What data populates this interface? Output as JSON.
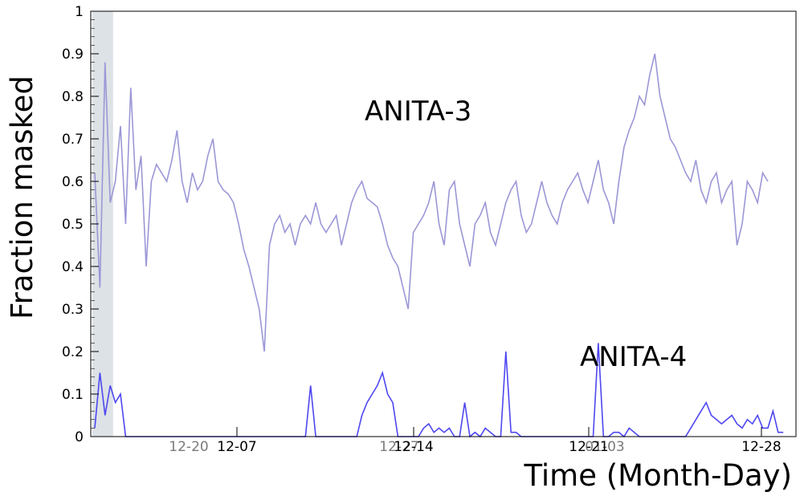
{
  "chart_data": {
    "type": "line",
    "title": "",
    "xlabel": "Time (Month-Day)",
    "ylabel": "Fraction masked",
    "ylim": [
      0,
      1
    ],
    "yticks": [
      "0",
      "0.1",
      "0.2",
      "0.3",
      "0.4",
      "0.5",
      "0.6",
      "0.7",
      "0.8",
      "0.9",
      "1"
    ],
    "xticks_anita3": [
      "12-20",
      "12-27",
      "01-03"
    ],
    "xticks_anita4": [
      "12-07",
      "12-14",
      "12-21",
      "12-28"
    ],
    "annotations": [
      "ANITA-3",
      "ANITA-4"
    ],
    "colors": {
      "anita3": "#9b97d6",
      "anita4": "#4e47f0",
      "shade": "#dde2e6"
    },
    "series": [
      {
        "name": "ANITA-3",
        "values": [
          0.62,
          0.35,
          0.88,
          0.55,
          0.6,
          0.73,
          0.5,
          0.82,
          0.58,
          0.66,
          0.4,
          0.6,
          0.64,
          0.62,
          0.6,
          0.65,
          0.72,
          0.6,
          0.55,
          0.62,
          0.58,
          0.6,
          0.66,
          0.7,
          0.6,
          0.58,
          0.57,
          0.55,
          0.5,
          0.44,
          0.4,
          0.35,
          0.3,
          0.2,
          0.45,
          0.5,
          0.52,
          0.48,
          0.5,
          0.45,
          0.5,
          0.52,
          0.5,
          0.55,
          0.5,
          0.48,
          0.5,
          0.52,
          0.45,
          0.5,
          0.55,
          0.58,
          0.6,
          0.56,
          0.55,
          0.54,
          0.5,
          0.45,
          0.42,
          0.4,
          0.35,
          0.3,
          0.48,
          0.5,
          0.52,
          0.55,
          0.6,
          0.5,
          0.45,
          0.58,
          0.6,
          0.5,
          0.45,
          0.4,
          0.5,
          0.52,
          0.55,
          0.48,
          0.45,
          0.5,
          0.55,
          0.58,
          0.6,
          0.52,
          0.48,
          0.5,
          0.55,
          0.6,
          0.55,
          0.52,
          0.5,
          0.55,
          0.58,
          0.6,
          0.62,
          0.58,
          0.55,
          0.6,
          0.65,
          0.58,
          0.55,
          0.5,
          0.6,
          0.68,
          0.72,
          0.75,
          0.8,
          0.78,
          0.85,
          0.9,
          0.8,
          0.75,
          0.7,
          0.68,
          0.65,
          0.62,
          0.6,
          0.65,
          0.58,
          0.55,
          0.6,
          0.62,
          0.55,
          0.58,
          0.6,
          0.45,
          0.5,
          0.6,
          0.58,
          0.55,
          0.62,
          0.6
        ]
      },
      {
        "name": "ANITA-4",
        "values": [
          0.02,
          0.15,
          0.05,
          0.12,
          0.08,
          0.1,
          0,
          0,
          0,
          0,
          0,
          0,
          0,
          0,
          0,
          0,
          0,
          0,
          0,
          0,
          0,
          0,
          0,
          0,
          0,
          0,
          0,
          0,
          0,
          0,
          0,
          0,
          0,
          0,
          0,
          0,
          0,
          0,
          0,
          0,
          0,
          0,
          0.12,
          0,
          0,
          0,
          0,
          0,
          0,
          0,
          0,
          0,
          0.05,
          0.08,
          0.1,
          0.12,
          0.15,
          0.1,
          0.08,
          0,
          0,
          0,
          0,
          0,
          0.02,
          0.03,
          0.01,
          0.02,
          0.01,
          0.02,
          0,
          0,
          0.08,
          0,
          0.01,
          0,
          0.02,
          0.01,
          0,
          0,
          0.2,
          0.01,
          0.01,
          0,
          0,
          0,
          0,
          0,
          0,
          0,
          0,
          0,
          0,
          0,
          0,
          0,
          0,
          0,
          0.22,
          0,
          0,
          0.01,
          0.01,
          0,
          0.02,
          0.01,
          0,
          0,
          0,
          0,
          0,
          0,
          0,
          0,
          0,
          0,
          0.02,
          0.04,
          0.06,
          0.08,
          0.05,
          0.04,
          0.03,
          0.04,
          0.05,
          0.03,
          0.02,
          0.04,
          0.03,
          0.05,
          0.02,
          0.02,
          0.06,
          0.01,
          0.01
        ]
      }
    ],
    "shaded_region": {
      "from_index": 0,
      "to_index": 2
    }
  }
}
